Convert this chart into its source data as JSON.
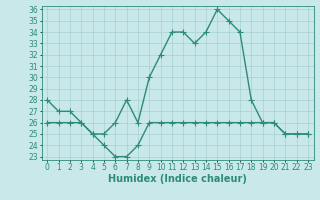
{
  "title": "",
  "xlabel": "Humidex (Indice chaleur)",
  "x": [
    0,
    1,
    2,
    3,
    4,
    5,
    6,
    7,
    8,
    9,
    10,
    11,
    12,
    13,
    14,
    15,
    16,
    17,
    18,
    19,
    20,
    21,
    22,
    23
  ],
  "line1_y": [
    28,
    27,
    27,
    26,
    25,
    25,
    26,
    28,
    26,
    30,
    32,
    34,
    34,
    33,
    34,
    36,
    35,
    34,
    28,
    26,
    26,
    25,
    25,
    25
  ],
  "line2_y": [
    26,
    26,
    26,
    26,
    25,
    24,
    23,
    23,
    24,
    26,
    26,
    26,
    26,
    26,
    26,
    26,
    26,
    26,
    26,
    26,
    26,
    25,
    25,
    25
  ],
  "line_color": "#2e8b74",
  "bg_color": "#c8e8ea",
  "grid_color": "#a8d0d4",
  "ylim": [
    23,
    36
  ],
  "xlim": [
    -0.5,
    23.5
  ],
  "yticks": [
    23,
    24,
    25,
    26,
    27,
    28,
    29,
    30,
    31,
    32,
    33,
    34,
    35,
    36
  ],
  "xticks": [
    0,
    1,
    2,
    3,
    4,
    5,
    6,
    7,
    8,
    9,
    10,
    11,
    12,
    13,
    14,
    15,
    16,
    17,
    18,
    19,
    20,
    21,
    22,
    23
  ],
  "marker": "+",
  "markersize": 4,
  "linewidth": 1.0,
  "tick_fontsize": 5.5,
  "xlabel_fontsize": 7
}
